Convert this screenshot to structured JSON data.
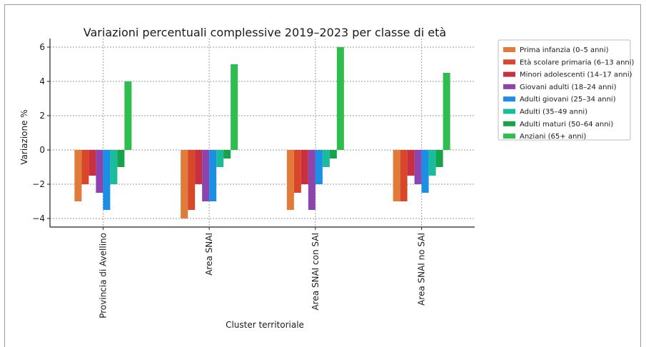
{
  "chart_data": {
    "type": "bar",
    "title": "Variazioni percentuali complessive 2019–2023 per classe di età",
    "xlabel": "Cluster territoriale",
    "ylabel": "Variazione %",
    "ylim": [
      -4.5,
      6.5
    ],
    "yticks": [
      6,
      4,
      2,
      0,
      -2,
      -4
    ],
    "ytick_labels": [
      "6",
      "4",
      "2",
      "0",
      "−2",
      "−4"
    ],
    "grid": true,
    "legend_position": "top-right",
    "categories": [
      "Provincia di Avellino",
      "Area SNAI",
      "Area SNAI con SAI",
      "Area SNAI no SAI"
    ],
    "series": [
      {
        "name": "Prima infanzia (0–5 anni)",
        "color": "#e07b39",
        "values": [
          -3.0,
          -4.0,
          -3.5,
          -3.0
        ]
      },
      {
        "name": "Età scolare primaria (6–13 anni)",
        "color": "#d9472b",
        "values": [
          -2.0,
          -3.5,
          -2.5,
          -3.0
        ]
      },
      {
        "name": "Minori adolescenti (14–17 anni)",
        "color": "#c8303f",
        "values": [
          -1.5,
          -2.0,
          -2.0,
          -1.5
        ]
      },
      {
        "name": "Giovani adulti (18–24 anni)",
        "color": "#8e44ad",
        "values": [
          -2.5,
          -3.0,
          -3.5,
          -2.0
        ]
      },
      {
        "name": "Adulti giovani (25–34 anni)",
        "color": "#1a8fe3",
        "values": [
          -3.5,
          -3.0,
          -2.0,
          -2.5
        ]
      },
      {
        "name": "Adulti (35–49 anni)",
        "color": "#1abc9c",
        "values": [
          -2.0,
          -1.0,
          -1.0,
          -1.5
        ]
      },
      {
        "name": "Adulti maturi (50–64 anni)",
        "color": "#16a34a",
        "values": [
          -1.0,
          -0.5,
          -0.5,
          -1.0
        ]
      },
      {
        "name": "Anziani (65+ anni)",
        "color": "#2ebd4e",
        "values": [
          4.0,
          5.0,
          6.0,
          4.5
        ]
      }
    ]
  }
}
